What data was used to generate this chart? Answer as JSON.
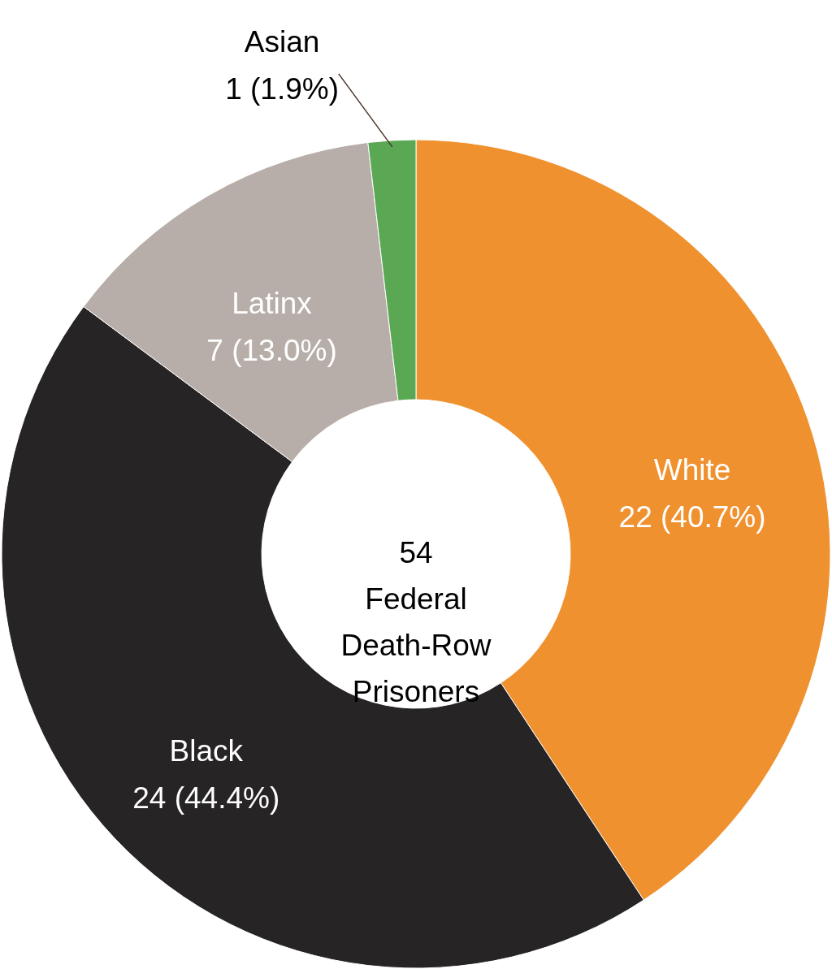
{
  "chart_data": {
    "type": "donut",
    "categories": [
      "White",
      "Black",
      "Latinx",
      "Asian"
    ],
    "values": [
      22,
      24,
      7,
      1
    ],
    "value_labels": [
      "22 (40.7%)",
      "24 (44.4%)",
      "7 (13.0%)",
      "1 (1.9%)"
    ],
    "colors": [
      "#f0912f",
      "#262424",
      "#b8aea9",
      "#5aa854"
    ],
    "annotations": [
      "54\nFederal\nDeath-Row\nPrisoners"
    ]
  }
}
